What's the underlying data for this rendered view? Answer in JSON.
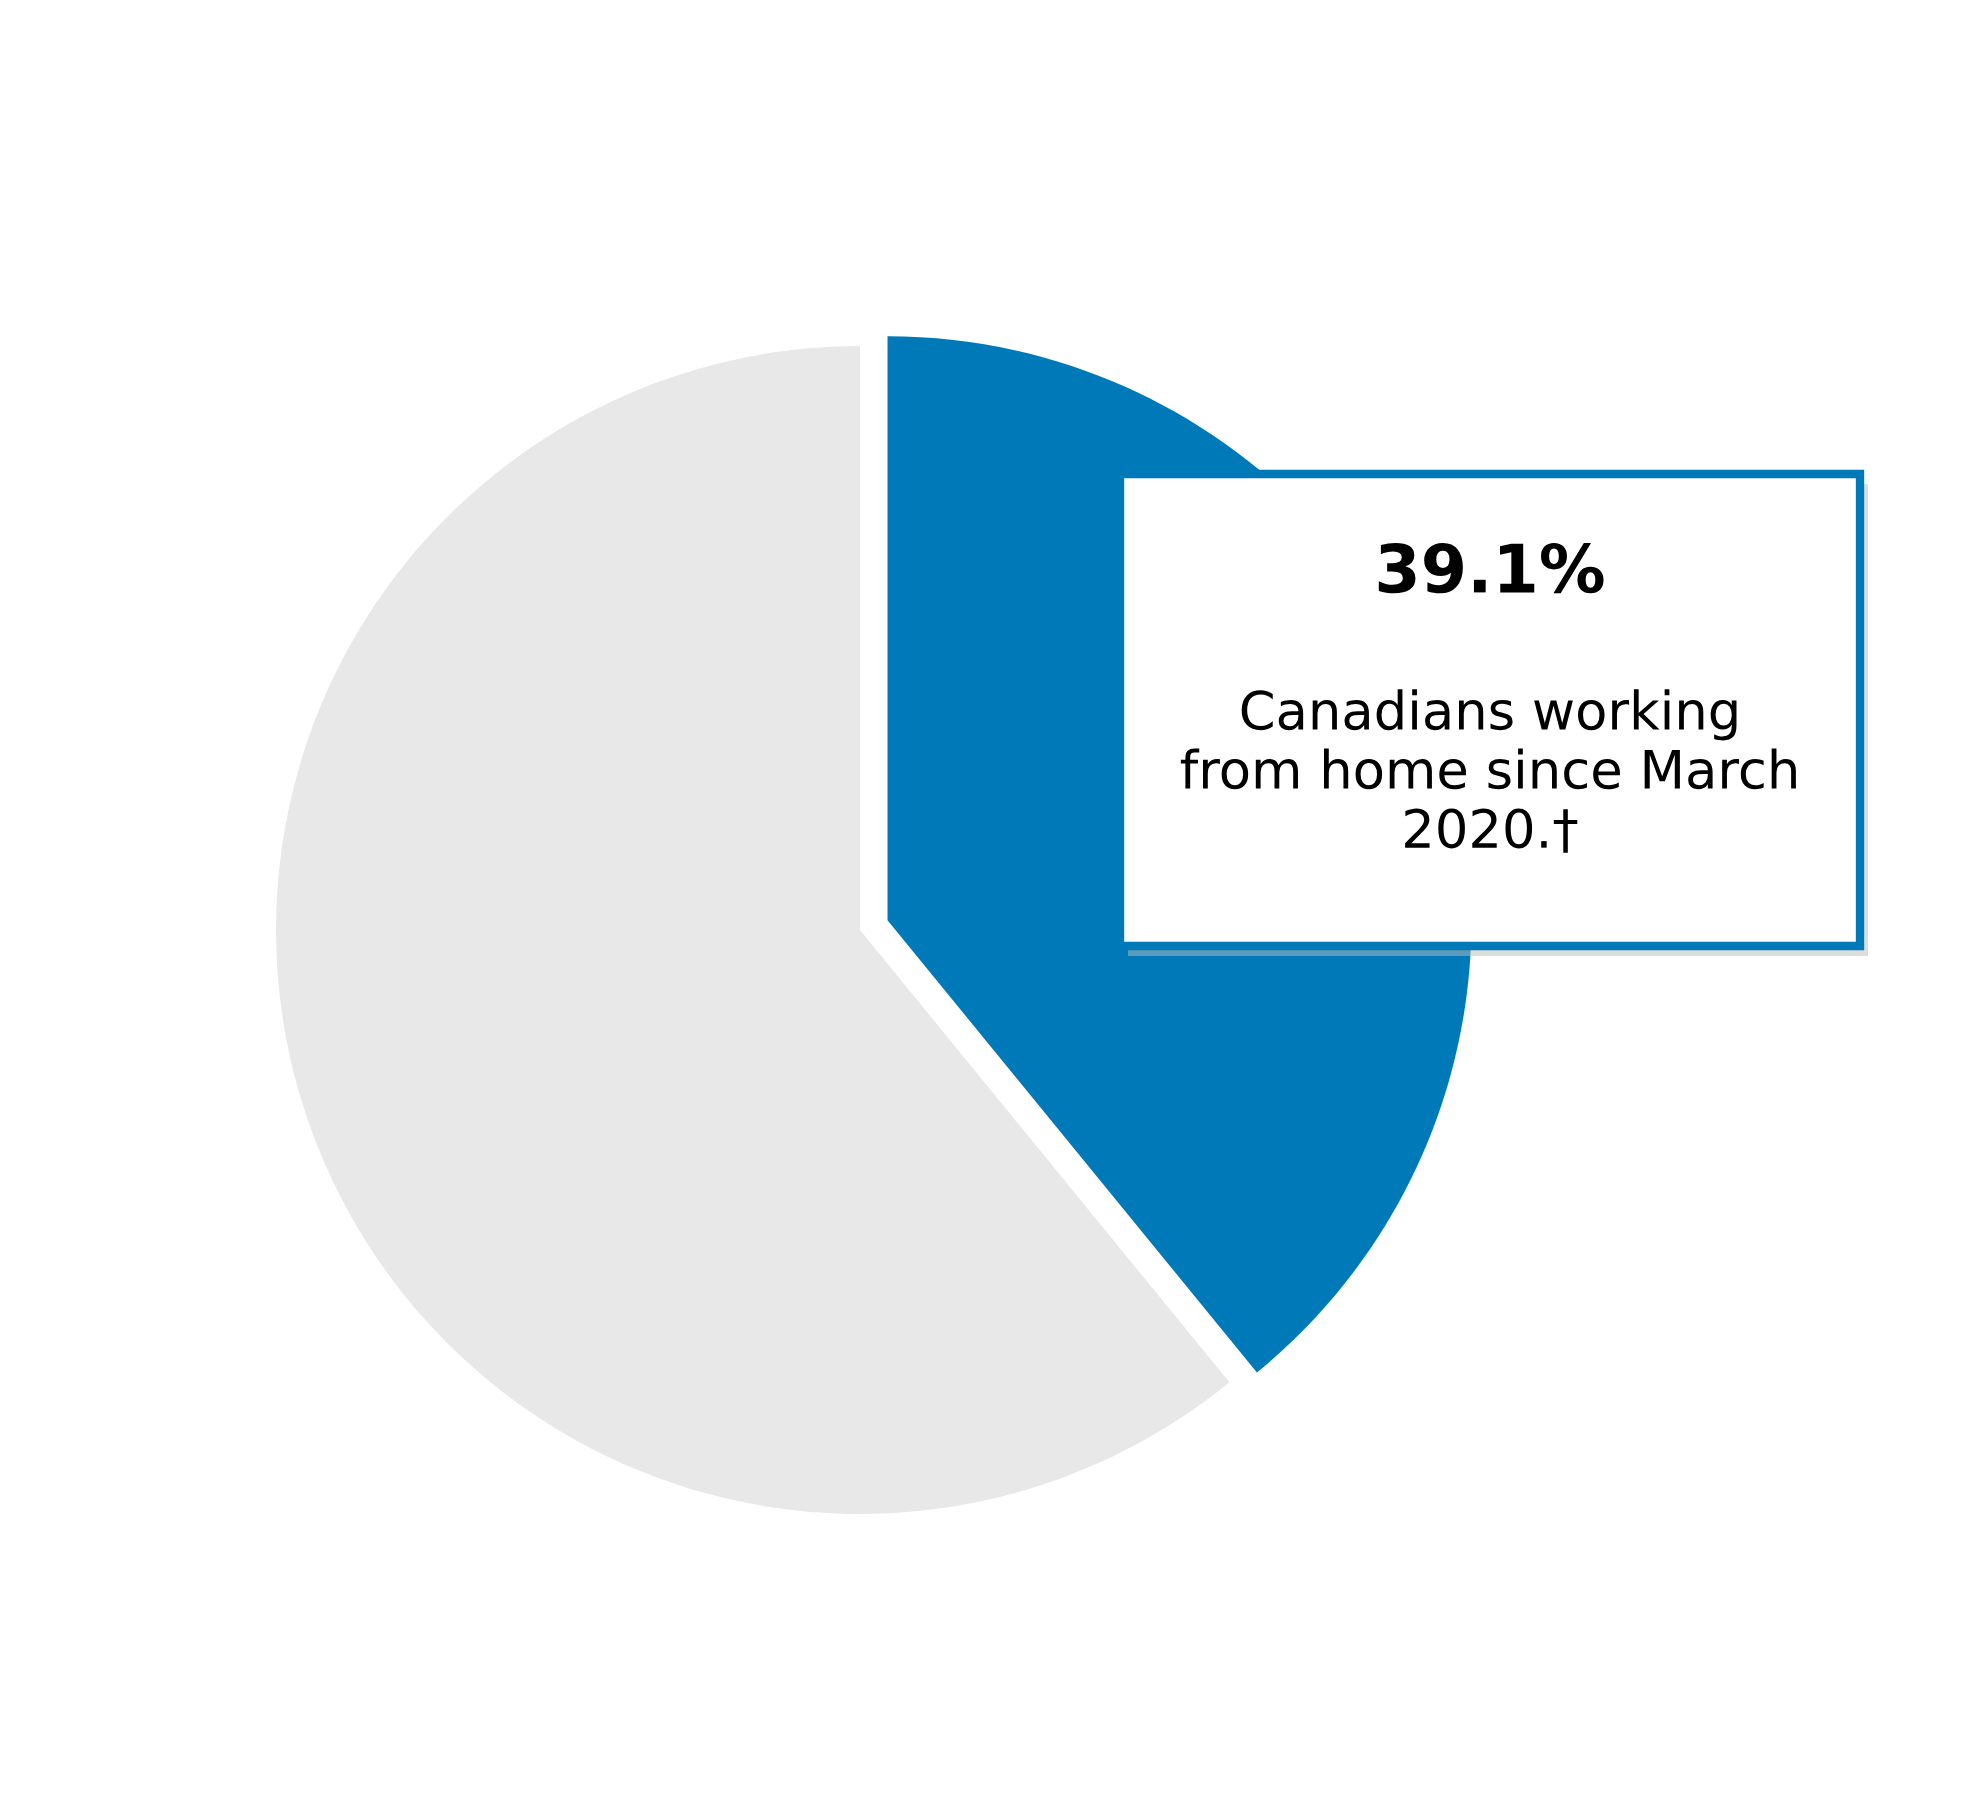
{
  "chart_data": {
    "type": "pie",
    "categories": [
      "Canadians working from home since March 2020.†",
      null
    ],
    "values": [
      39.1,
      60.9
    ],
    "colors": [
      "#0079b8",
      "#e8e8e8"
    ],
    "value_labels": [
      "39.1%",
      null
    ]
  }
}
